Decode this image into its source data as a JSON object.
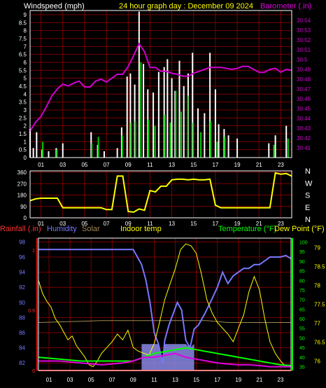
{
  "header": {
    "left_label": "Windspeed (mph)",
    "title": "24 hour graph day : December 09 2024",
    "right_label": "Barometer (.in)"
  },
  "panel3_labels": {
    "rainfall": "Rainfall (.in)",
    "humidity": "Humidity",
    "solar": "Solar",
    "indoor": "Indoor temp",
    "temperature": "Temperature (°F)",
    "dewpoint": "Dew Point (°F)"
  },
  "colors": {
    "wind": "#ffffff",
    "gust": "#00cc00",
    "barometer": "#d000d0",
    "direction": "#ffff00",
    "rainfall": "#ff0000",
    "humidity": "#7777ff",
    "solar": "#a08850",
    "indoor": "#ffff00",
    "temperature": "#00ff00",
    "dewpoint": "#ffff00",
    "grid": "#7a0000",
    "frame": "#ffffff"
  },
  "chart_data": [
    {
      "type": "bar",
      "title": "24 hour graph day : December 09 2024",
      "ylabel": "Windspeed (mph)",
      "y2label": "Barometer (.in)",
      "ylim": [
        0,
        9
      ],
      "y2lim": [
        30.4,
        30.55
      ],
      "yticks": [
        "0",
        "0.5",
        "1",
        "1.5",
        "2",
        "2.5",
        "3",
        "3.5",
        "4",
        "4.5",
        "5",
        "5.5",
        "6",
        "6.5",
        "7",
        "7.5",
        "8",
        "8.5",
        "9"
      ],
      "y2ticks": [
        "30.41",
        "30.42",
        "30.43",
        "30.44",
        "30.45",
        "30.46",
        "30.47",
        "30.48",
        "30.49",
        "30.5",
        "30.51",
        "30.52",
        "30.53",
        "30.54"
      ],
      "xticks": [
        "01",
        "03",
        "05",
        "07",
        "09",
        "11",
        "13",
        "15",
        "17",
        "19",
        "21",
        "23"
      ],
      "grid": true,
      "series": [
        {
          "name": "Windspeed",
          "x": [
            0,
            0.3,
            0.6,
            1.1,
            1.7,
            2.4,
            3.0,
            5.6,
            6.2,
            6.8,
            8.0,
            8.4,
            8.9,
            9.2,
            9.6,
            10.0,
            10.4,
            10.8,
            11.3,
            11.8,
            12.3,
            12.6,
            13.0,
            13.3,
            13.7,
            14.1,
            14.5,
            14.9,
            15.4,
            16.0,
            16.5,
            17.0,
            17.3,
            17.8,
            18.2,
            19.0,
            21.9,
            22.5,
            23.5
          ],
          "y": [
            1.8,
            0.6,
            1.6,
            0.5,
            0.4,
            0.6,
            0.9,
            1.6,
            0.8,
            0.4,
            0.6,
            1.9,
            5.1,
            5.3,
            4.6,
            9.2,
            5.9,
            4.3,
            4.1,
            5.4,
            5.7,
            6.2,
            5.0,
            4.2,
            6.1,
            4.5,
            5.3,
            6.6,
            3.1,
            2.8,
            6.6,
            4.3,
            2.1,
            1.8,
            1.4,
            1.2,
            0.9,
            1.4,
            2.0
          ]
        },
        {
          "name": "Gust",
          "x": [
            1.1,
            2.4,
            5.6,
            6.2,
            8.4,
            9.2,
            9.6,
            10.1,
            10.8,
            11.4,
            12.3,
            12.8,
            13.3,
            13.8,
            14.4,
            14.9,
            15.6,
            16.5,
            17.1,
            17.8,
            22.3,
            23.6
          ],
          "y": [
            1.0,
            0.5,
            0.9,
            1.3,
            1.4,
            2.2,
            2.3,
            6.0,
            2.4,
            2.0,
            2.7,
            2.2,
            4.2,
            2.9,
            3.9,
            2.2,
            1.6,
            2.3,
            1.0,
            1.3,
            0.8,
            1.2
          ]
        },
        {
          "name": "Barometer",
          "x": [
            0,
            0.5,
            1,
            1.5,
            2,
            2.5,
            3,
            3.5,
            4,
            4.5,
            5,
            5.5,
            6,
            6.5,
            7,
            7.5,
            8,
            8.5,
            9,
            9.5,
            10,
            10.5,
            11,
            11.5,
            12,
            12.5,
            13,
            13.5,
            14,
            14.5,
            15,
            15.5,
            16,
            16.5,
            17,
            17.5,
            18,
            18.5,
            19,
            19.5,
            20,
            20.5,
            21,
            21.5,
            22,
            22.5,
            23,
            23.5,
            24
          ],
          "y": [
            30.427,
            30.436,
            30.442,
            30.452,
            30.463,
            30.47,
            30.475,
            30.473,
            30.476,
            30.478,
            30.472,
            30.472,
            30.478,
            30.48,
            30.477,
            30.481,
            30.485,
            30.485,
            30.493,
            30.504,
            30.516,
            30.508,
            30.492,
            30.492,
            30.488,
            30.488,
            30.486,
            30.485,
            30.483,
            30.483,
            30.486,
            30.488,
            30.49,
            30.492,
            30.492,
            30.492,
            30.491,
            30.49,
            30.491,
            30.493,
            30.493,
            30.49,
            30.487,
            30.487,
            30.49,
            30.491,
            30.487,
            30.49,
            30.489
          ]
        }
      ]
    },
    {
      "type": "line",
      "name": "Wind direction",
      "ylim": [
        0,
        360
      ],
      "yticks": [
        "0",
        "90",
        "180",
        "270",
        "360"
      ],
      "right_labels": [
        "N",
        "W",
        "S",
        "E",
        "N"
      ],
      "xticks": [
        "01",
        "03",
        "05",
        "07",
        "09",
        "11",
        "13",
        "15",
        "17",
        "19",
        "21",
        "23"
      ],
      "x": [
        0,
        0.5,
        1,
        1.5,
        2,
        2.5,
        3,
        3.5,
        4,
        4.5,
        5,
        5.5,
        6,
        6.5,
        7,
        7.5,
        8,
        8.5,
        9,
        9.5,
        10,
        10.5,
        11,
        11.5,
        12,
        12.5,
        13,
        13.5,
        14,
        14.5,
        15,
        15.5,
        16,
        16.5,
        17,
        17.5,
        18,
        18.5,
        19,
        19.5,
        20,
        20.5,
        21,
        21.5,
        22,
        22.5,
        23,
        23.5,
        24
      ],
      "y": [
        135,
        150,
        155,
        155,
        155,
        155,
        80,
        80,
        80,
        80,
        80,
        80,
        80,
        80,
        65,
        65,
        330,
        330,
        50,
        45,
        70,
        60,
        215,
        205,
        250,
        250,
        300,
        305,
        305,
        300,
        305,
        300,
        300,
        305,
        100,
        80,
        80,
        80,
        80,
        80,
        80,
        80,
        80,
        80,
        80,
        355,
        345,
        350,
        330
      ]
    },
    {
      "type": "line",
      "name": "Rainfall, humidity, solar, indoor temp, temperature and dew point",
      "x_ticks": [
        "01",
        "03",
        "05",
        "07",
        "09",
        "11",
        "13",
        "15",
        "17",
        "19",
        "21",
        "23"
      ],
      "rain_ticks": [
        "0",
        "0.5",
        "1"
      ],
      "humidity_ticks": [
        "82",
        "84",
        "86",
        "88",
        "90",
        "92",
        "94",
        "96",
        "98"
      ],
      "indoor_ticks": [
        "35",
        "40",
        "45",
        "50",
        "55",
        "60",
        "65",
        "70",
        "75",
        "80",
        "85",
        "90",
        "95",
        "100"
      ],
      "temp_ticks": [
        "76",
        "76.5",
        "77",
        "77.5",
        "78",
        "78.5",
        "79"
      ],
      "rainfall_lim": [
        0,
        1.1
      ],
      "humidity_lim": [
        81,
        98.5
      ],
      "indoor_lim": [
        33,
        102
      ],
      "temp_lim": [
        75.75,
        79.25
      ],
      "series": [
        {
          "name": "Rainfall",
          "unit": "rain",
          "x": [
            0,
            24
          ],
          "y": [
            0,
            0
          ]
        },
        {
          "name": "Humidity",
          "unit": "humidity",
          "x": [
            0,
            3,
            6,
            9,
            9.8,
            10.2,
            10.6,
            11.0,
            11.4,
            11.8,
            12.0,
            12.4,
            12.8,
            13.2,
            13.6,
            14.0,
            14.4,
            14.8,
            15.2,
            15.8,
            16.5,
            17.0,
            17.5,
            18.0,
            18.5,
            19.0,
            19.5,
            20.0,
            20.5,
            21.0,
            21.5,
            22.0,
            22.5,
            23.0,
            23.5,
            24
          ],
          "y": [
            97,
            97,
            97,
            97,
            95.0,
            93.0,
            90.0,
            86.0,
            84.5,
            82.0,
            85.0,
            87.0,
            88.5,
            90.0,
            89.0,
            85.0,
            84.0,
            86.5,
            87.0,
            88.5,
            90.5,
            92.0,
            94.0,
            92.5,
            93.5,
            94.0,
            94.5,
            94.5,
            95.0,
            95.0,
            95.5,
            96.0,
            96.0,
            96.0,
            96.2,
            95.8
          ]
        },
        {
          "name": "Solar",
          "unit": "indoor",
          "x": [
            0,
            6,
            9,
            10,
            12,
            14,
            16,
            18,
            20,
            22,
            24
          ],
          "y": [
            58,
            59,
            59,
            59,
            59,
            59,
            59,
            58,
            58,
            58,
            58
          ]
        },
        {
          "name": "Indoor temp",
          "unit": "indoor",
          "x": [
            0,
            0.4,
            0.8,
            1.2,
            1.6,
            2.0,
            2.4,
            2.8,
            3.2,
            3.6,
            4.0,
            4.4,
            4.8,
            5.2,
            5.6,
            6.0,
            6.5,
            7.0,
            7.5,
            8.0,
            8.5,
            9.0,
            9.5,
            10.0,
            10.5,
            11.0,
            11.5,
            12.0,
            12.5,
            13.0,
            13.5,
            14.0,
            14.5,
            15.0,
            15.5,
            16.0,
            16.5,
            17.0,
            17.5,
            18.0,
            18.5,
            19.0,
            19.5,
            20.0,
            20.5,
            21.0,
            21.5,
            22.0,
            22.5,
            23.0,
            23.5,
            24
          ],
          "y": [
            80,
            73,
            69,
            66,
            60,
            57,
            53,
            49,
            51,
            46,
            43,
            40,
            36,
            35,
            38,
            42,
            45,
            48,
            52,
            49,
            54,
            45,
            43,
            42,
            41,
            47,
            58,
            70,
            78,
            86,
            96,
            99,
            98,
            94,
            83,
            70,
            63,
            58,
            55,
            52,
            48,
            55,
            62,
            74,
            82,
            75,
            60,
            48,
            42,
            38,
            35,
            35
          ]
        },
        {
          "name": "Temperature",
          "unit": "temp",
          "x": [
            0,
            2,
            4,
            6,
            8,
            9,
            10,
            11,
            12,
            13,
            14,
            15,
            16,
            17,
            18,
            19,
            20,
            21,
            22,
            23,
            24
          ],
          "y": [
            76.1,
            76.05,
            76.0,
            76.0,
            76.0,
            76.0,
            76.1,
            76.2,
            76.25,
            76.3,
            76.35,
            76.3,
            76.25,
            76.2,
            76.15,
            76.1,
            76.05,
            76.0,
            75.95,
            75.9,
            75.88
          ]
        },
        {
          "name": "Dew Point",
          "unit": "temp",
          "x": [
            0,
            2,
            4,
            6,
            8,
            9,
            10,
            11,
            12,
            13,
            14,
            15,
            16,
            17,
            18,
            19,
            20,
            21,
            22,
            23,
            24
          ],
          "y": [
            76.0,
            76.0,
            75.95,
            75.9,
            75.95,
            76.0,
            76.1,
            76.1,
            76.15,
            76.2,
            76.1,
            76.05,
            76.0,
            75.95,
            75.92,
            75.9,
            75.9,
            75.88,
            75.85,
            75.85,
            75.85
          ]
        }
      ]
    }
  ]
}
